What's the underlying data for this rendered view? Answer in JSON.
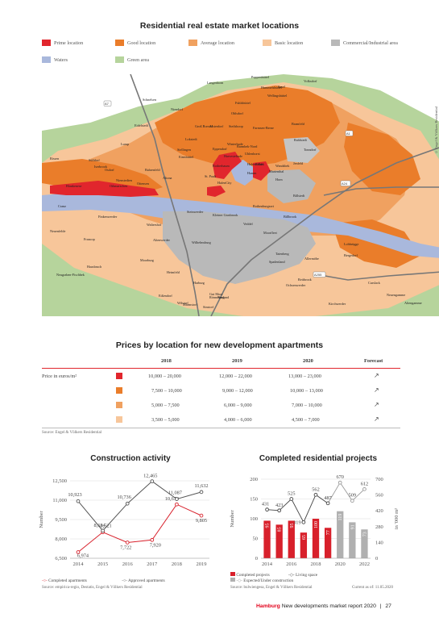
{
  "map_section": {
    "title": "Residential real estate market locations",
    "legend": [
      {
        "label": "Prime location",
        "color": "#e1262d"
      },
      {
        "label": "Good location",
        "color": "#ea7d2a"
      },
      {
        "label": "Average location",
        "color": "#f0a160"
      },
      {
        "label": "Basic location",
        "color": "#f7c69a"
      },
      {
        "label": "Commercial/Industrial area",
        "color": "#b9b9b9"
      },
      {
        "label": "Waters",
        "color": "#a9b8dc"
      },
      {
        "label": "Green area",
        "color": "#b6d49c"
      }
    ],
    "copyright": "© Engel & Völkers Residential",
    "road_labels": [
      "A7",
      "A1",
      "A24",
      "A255"
    ],
    "district_labels": [
      "Langenhorn",
      "Poppenbüttel",
      "Sasel",
      "Volksdorf",
      "Hummelsbüttel",
      "Wellingsbüttel",
      "Schnelsen",
      "Niendorf",
      "Ohlsdorf",
      "Fuhlsbüttel",
      "Bramfeld",
      "Farmsen-Berne",
      "Eidelstedt",
      "Groß Borstel",
      "Alsterdorf",
      "Steilshoop",
      "Rahlstedt",
      "Lokstedt",
      "Lurup",
      "Stellingen",
      "Eppendorf",
      "Winterhude",
      "Barmbek-Nord",
      "Tonndorf",
      "Osdorf",
      "Eimsbüttel",
      "Harvestehude",
      "Uhlenhorst",
      "Wandsbek",
      "Jenfeld",
      "Rissen",
      "Sülldorf",
      "Iserbrook",
      "Bahrenfeld",
      "Othmarschen",
      "Ottensen",
      "Altona",
      "Blankenese",
      "Nienstedten",
      "Rotherbaum",
      "Hohenfelde",
      "Eilbek",
      "Marienthal",
      "St. Pauli",
      "HafenCity",
      "Hamm",
      "Horn",
      "Billstedt",
      "Cranz",
      "Finkenwerder",
      "Waltershof",
      "Steinwerder",
      "Kleiner Grasbrook",
      "Rothenburgsort",
      "Billbrook",
      "Neuenfelde",
      "Moorburg",
      "Francop",
      "Altenwerder",
      "Wilhelmsburg",
      "Veddel",
      "Moorfleet",
      "Tatenberg",
      "Lohbrügge",
      "Bergedorf",
      "Allermöhe",
      "Spadenland",
      "Neugraben-Fischbek",
      "Hausbruch",
      "Heimfeld",
      "Harburg",
      "Eißendorf",
      "Marmstorf",
      "Wilstorf",
      "Sinstorf",
      "Rönneburg",
      "Neuland",
      "Gut Moor",
      "Ochsenwerder",
      "Reitbrook",
      "Curslack",
      "Neuengamme",
      "Kirchwerder",
      "Altengamme"
    ]
  },
  "prices": {
    "title": "Prices by location for new development apartments",
    "columns": [
      "2018",
      "2019",
      "2020",
      "Forecast"
    ],
    "row_label": "Price in euros/m²",
    "rows": [
      {
        "color": "#e1262d",
        "v2018": "10,000 – 20,000",
        "v2019": "12,000 – 22,000",
        "v2020": "13,000 – 23,000",
        "forecast": "↗"
      },
      {
        "color": "#ea7d2a",
        "v2018": "7,500 – 10,000",
        "v2019": "9,000 – 12,000",
        "v2020": "10,000 – 13,000",
        "forecast": "↗"
      },
      {
        "color": "#f0a160",
        "v2018": "5,000 – 7,500",
        "v2019": "6,000 – 9,000",
        "v2020": "7,000 – 10,000",
        "forecast": "↗"
      },
      {
        "color": "#f7c69a",
        "v2018": "3,500 – 5,000",
        "v2019": "4,000 – 6,000",
        "v2020": "4,500 – 7,000",
        "forecast": "↗"
      }
    ],
    "source": "Source: Engel & Völkers Residential"
  },
  "construction": {
    "title": "Construction activity",
    "legend_completed": "Completed apartments",
    "legend_approved": "Approved apartments",
    "source": "Source: empirica-regio, Destatis, Engel & Völkers Residential"
  },
  "completed_projects": {
    "title": "Completed residential projects",
    "legend_completed": "Completed projects",
    "legend_living": "Living space",
    "legend_expected": "Expected/Under construction",
    "source": "Source: bulwiengesa, Engel & Völkers Residential",
    "current_as_of": "Current as of: 11.05.2020"
  },
  "chart_data": [
    {
      "type": "line",
      "title": "Construction activity",
      "ylabel": "Number",
      "x": [
        2014,
        2015,
        2016,
        2017,
        2018,
        2019
      ],
      "ylim": [
        6500,
        12500
      ],
      "yticks": [
        6500,
        8000,
        9500,
        11000,
        12500
      ],
      "series": [
        {
          "name": "Completed apartments",
          "color": "#d8202b",
          "values": [
            6974,
            8521,
            7722,
            7920,
            10674,
            9805
          ]
        },
        {
          "name": "Approved apartments",
          "color": "#555555",
          "values": [
            10923,
            8634,
            10736,
            12465,
            11087,
            11632
          ]
        }
      ]
    },
    {
      "type": "bar",
      "title": "Completed residential projects",
      "ylabel": "Number",
      "y2label": "in '000 m²",
      "x": [
        2014,
        2015,
        2016,
        2017,
        2018,
        2019,
        2020,
        2021,
        2022
      ],
      "xticks": [
        2014,
        2016,
        2018,
        2020,
        2022
      ],
      "ylim": [
        0,
        200
      ],
      "yticks": [
        0,
        50,
        100,
        150,
        200
      ],
      "y2lim": [
        0,
        700
      ],
      "y2ticks": [
        0,
        140,
        280,
        420,
        560,
        700
      ],
      "series": [
        {
          "name": "Completed projects",
          "color": "#d8202b",
          "values": [
            95,
            85,
            95,
            65,
            100,
            77,
            null,
            null,
            null
          ]
        },
        {
          "name": "Expected/Under construction",
          "color": "#b0b0b0",
          "values": [
            null,
            null,
            null,
            null,
            null,
            null,
            119,
            91,
            73
          ]
        },
        {
          "name": "Living space",
          "axis": "y2",
          "values": [
            431,
            423,
            525,
            319,
            562,
            487,
            670,
            509,
            612
          ]
        }
      ]
    }
  ],
  "footer": {
    "brand": "Hamburg",
    "text": "New developments market report 2020",
    "separator": "|",
    "page": "27"
  }
}
